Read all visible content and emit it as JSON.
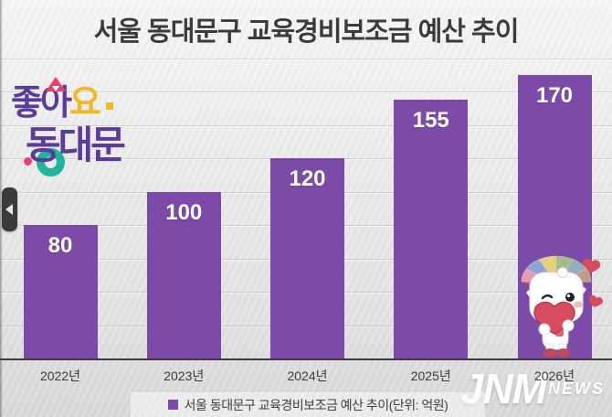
{
  "title": "서울 동대문구 교육경비보조금 예산 추이",
  "chart_data": {
    "type": "bar",
    "title": "서울 동대문구 교육경비보조금 예산 추이",
    "categories": [
      "2022년",
      "2023년",
      "2024년",
      "2025년",
      "2026년"
    ],
    "values": [
      80,
      100,
      120,
      155,
      170
    ],
    "data_labels": [
      "80",
      "100",
      "120",
      "155",
      "170"
    ],
    "unit": "억원",
    "ylim": [
      0,
      180
    ],
    "grid_step": 20,
    "grid": "horizontal",
    "legend_position": "bottom",
    "bar_color": "#7C4BA8",
    "label_color": "#ffffff",
    "axis_color": "#3e3e40"
  },
  "legend": {
    "label": "서울 동대문구 교육경비보조금 예산 추이(단위: 억원)",
    "swatch_color": "#7C4BA8"
  },
  "logo": {
    "text_top_main": "좋아",
    "text_top_accent": "요",
    "text_bottom": "동대문",
    "purple": "#5B3C9B",
    "pink": "#EE3E6D",
    "yellow": "#F0B929",
    "green": "#1FB49B"
  },
  "watermark": {
    "brand": "JNM",
    "sub": "NEWS"
  },
  "nav": {
    "icon": "left-arrow"
  }
}
